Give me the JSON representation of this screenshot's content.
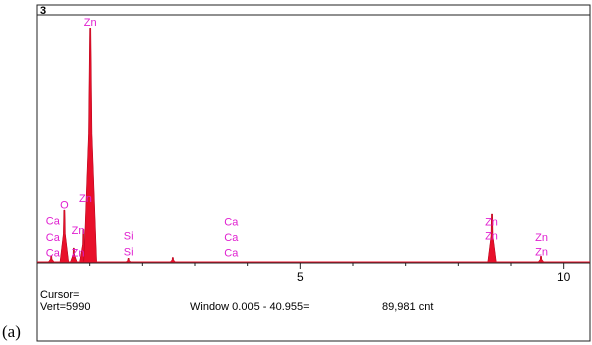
{
  "panel_label": "(a)",
  "chart_data": {
    "type": "area",
    "title": "",
    "xlabel": "",
    "ylabel": "",
    "spectrum_id": "3",
    "xlim": [
      0,
      10.5
    ],
    "ylim": [
      0,
      6200
    ],
    "x_ticks": [
      {
        "value": 5,
        "label": "5"
      },
      {
        "value": 10,
        "label": "10"
      }
    ],
    "peaks": [
      {
        "energy": 0.27,
        "height": 180
      },
      {
        "energy": 0.52,
        "height": 1350
      },
      {
        "energy": 0.7,
        "height": 380
      },
      {
        "energy": 0.88,
        "height": 860
      },
      {
        "energy": 1.01,
        "height": 5990
      },
      {
        "energy": 1.74,
        "height": 120
      },
      {
        "energy": 2.58,
        "height": 140
      },
      {
        "energy": 8.64,
        "height": 1250
      },
      {
        "energy": 9.57,
        "height": 170
      }
    ],
    "peak_labels": [
      {
        "text": "Zn",
        "energy": 1.01,
        "height": 6050
      },
      {
        "text": "O",
        "energy": 0.52,
        "height": 1390
      },
      {
        "text": "Ca",
        "energy": 0.3,
        "height": 980
      },
      {
        "text": "Ca",
        "energy": 0.3,
        "height": 560
      },
      {
        "text": "Ca",
        "energy": 0.3,
        "height": 160
      },
      {
        "text": "Zn",
        "energy": 0.92,
        "height": 1560
      },
      {
        "text": "Zn",
        "energy": 0.78,
        "height": 740
      },
      {
        "text": "Zn",
        "energy": 0.78,
        "height": 170
      },
      {
        "text": "Si",
        "energy": 1.74,
        "height": 600
      },
      {
        "text": "Si",
        "energy": 1.74,
        "height": 190
      },
      {
        "text": "Ca",
        "energy": 3.69,
        "height": 960
      },
      {
        "text": "Ca",
        "energy": 3.69,
        "height": 560
      },
      {
        "text": "Ca",
        "energy": 3.69,
        "height": 160
      },
      {
        "text": "Zn",
        "energy": 8.63,
        "height": 960
      },
      {
        "text": "Zn",
        "energy": 8.63,
        "height": 600
      },
      {
        "text": "Zn",
        "energy": 9.58,
        "height": 560
      },
      {
        "text": "Zn",
        "energy": 9.58,
        "height": 190
      }
    ],
    "fill_color": "#e8102a",
    "label_color": "#e020d0"
  },
  "footer": {
    "cursor": "Cursor=",
    "vert": "Vert=5990",
    "window": "Window 0.005 - 40.955=",
    "count": "89,981 cnt"
  }
}
